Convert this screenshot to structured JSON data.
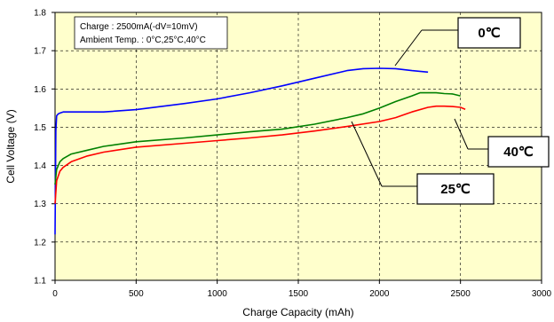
{
  "chart_data": {
    "type": "line",
    "title": "",
    "xlabel": "Charge Capacity (mAh)",
    "ylabel": "Cell Voltage (V)",
    "xlim": [
      0,
      3000
    ],
    "ylim": [
      1.1,
      1.8
    ],
    "x_ticks": [
      0,
      500,
      1000,
      1500,
      2000,
      2500,
      3000
    ],
    "y_ticks": [
      1.1,
      1.2,
      1.3,
      1.4,
      1.5,
      1.6,
      1.7,
      1.8
    ],
    "x_tick_labels": [
      "0",
      "500",
      "1000",
      "1500",
      "2000",
      "2500",
      "3000"
    ],
    "y_tick_labels": [
      "1.1",
      "1.2",
      "1.3",
      "1.4",
      "1.5",
      "1.6",
      "1.7",
      "1.8"
    ],
    "grid": "dashed",
    "background": "#FFFFCC",
    "annotation_lines": [
      "Charge : 2500mA(-dV=10mV)",
      "Ambient Temp. : 0°C,25°C,40°C"
    ],
    "series": [
      {
        "name": "0℃",
        "color": "#0000FF",
        "x": [
          0,
          5,
          10,
          20,
          30,
          50,
          100,
          300,
          500,
          800,
          1000,
          1200,
          1400,
          1600,
          1800,
          1900,
          2000,
          2100,
          2200,
          2300
        ],
        "y": [
          1.22,
          1.49,
          1.53,
          1.535,
          1.537,
          1.54,
          1.54,
          1.54,
          1.546,
          1.562,
          1.574,
          1.59,
          1.608,
          1.628,
          1.648,
          1.653,
          1.654,
          1.653,
          1.648,
          1.644
        ]
      },
      {
        "name": "25℃",
        "color": "#008000",
        "x": [
          0,
          10,
          30,
          50,
          100,
          200,
          300,
          500,
          800,
          1000,
          1200,
          1400,
          1600,
          1800,
          1900,
          2000,
          2100,
          2200,
          2250,
          2300,
          2350,
          2400,
          2450,
          2500
        ],
        "y": [
          1.35,
          1.39,
          1.41,
          1.418,
          1.43,
          1.44,
          1.45,
          1.462,
          1.472,
          1.48,
          1.488,
          1.495,
          1.508,
          1.525,
          1.535,
          1.55,
          1.567,
          1.582,
          1.59,
          1.59,
          1.59,
          1.588,
          1.587,
          1.582
        ]
      },
      {
        "name": "40℃",
        "color": "#FF0000",
        "x": [
          0,
          10,
          30,
          50,
          100,
          200,
          300,
          500,
          800,
          1000,
          1200,
          1400,
          1600,
          1800,
          2000,
          2100,
          2200,
          2300,
          2350,
          2400,
          2450,
          2500,
          2530
        ],
        "y": [
          1.3,
          1.36,
          1.385,
          1.395,
          1.41,
          1.425,
          1.435,
          1.448,
          1.458,
          1.465,
          1.472,
          1.48,
          1.49,
          1.502,
          1.515,
          1.525,
          1.54,
          1.552,
          1.555,
          1.555,
          1.554,
          1.552,
          1.547
        ]
      }
    ],
    "callouts": [
      {
        "text": "0℃",
        "series": "0℃",
        "target": [
          2100,
          1.653
        ]
      },
      {
        "text": "40℃",
        "series": "40℃",
        "target": [
          2470,
          1.553
        ]
      },
      {
        "text": "25℃",
        "series": "25℃",
        "target": [
          1800,
          1.525
        ]
      }
    ]
  }
}
